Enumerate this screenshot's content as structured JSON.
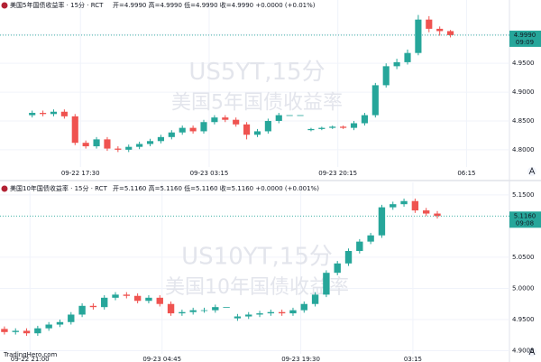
{
  "chart_data": [
    {
      "type": "candlestick",
      "header": "美国5年国债收益率 · 15分 · RCT",
      "ohlc_text": "开=4.9990 高=4.9990 低=4.9990 收=4.9990 +0.0000 (+0.01%)",
      "watermark": "US5YT,15分",
      "watermark_sub": "美国5年国债收益率",
      "up_color": "#26a69a",
      "down_color": "#ef5350",
      "open": [
        4.86,
        4.864,
        4.862,
        4.866,
        4.858,
        4.812,
        4.806,
        4.818,
        4.802,
        4.8,
        4.805,
        4.81,
        4.815,
        4.822,
        4.83,
        4.838,
        4.832,
        4.848,
        4.856,
        4.852,
        4.844,
        4.826,
        4.832,
        4.85,
        4.86,
        4.86,
        4.834,
        4.836,
        4.838,
        4.84,
        4.838,
        4.846,
        4.86,
        4.912,
        4.945,
        4.952,
        4.968,
        5.026,
        5.01,
        5.006
      ],
      "high": [
        4.868,
        4.868,
        4.87,
        4.87,
        4.862,
        4.816,
        4.822,
        4.822,
        4.806,
        4.809,
        4.814,
        4.819,
        4.826,
        4.834,
        4.842,
        4.842,
        4.852,
        4.86,
        4.86,
        4.856,
        4.848,
        4.836,
        4.854,
        4.864,
        4.86,
        4.86,
        4.838,
        4.84,
        4.842,
        4.842,
        4.85,
        4.864,
        4.916,
        4.95,
        4.958,
        4.974,
        5.034,
        5.032,
        5.014,
        5.008
      ],
      "low": [
        4.856,
        4.858,
        4.858,
        4.854,
        4.808,
        4.802,
        4.802,
        4.798,
        4.796,
        4.796,
        4.801,
        4.806,
        4.811,
        4.818,
        4.826,
        4.828,
        4.828,
        4.844,
        4.848,
        4.84,
        4.818,
        4.822,
        4.828,
        4.846,
        4.86,
        4.86,
        4.832,
        4.834,
        4.836,
        4.836,
        4.834,
        4.842,
        4.856,
        4.908,
        4.94,
        4.948,
        4.964,
        5.004,
        4.998,
        4.995
      ],
      "close": [
        4.864,
        4.862,
        4.866,
        4.858,
        4.812,
        4.806,
        4.818,
        4.802,
        4.8,
        4.805,
        4.81,
        4.815,
        4.822,
        4.83,
        4.838,
        4.832,
        4.848,
        4.856,
        4.852,
        4.844,
        4.826,
        4.832,
        4.85,
        4.86,
        4.86,
        4.86,
        4.836,
        4.838,
        4.84,
        4.838,
        4.846,
        4.86,
        4.912,
        4.945,
        4.952,
        4.968,
        5.026,
        5.01,
        5.006,
        4.999
      ],
      "xlim": [
        -3,
        44.5
      ],
      "ylim": [
        4.77,
        5.06
      ],
      "xticks": [
        {
          "value": 4.5,
          "label": "09-22 17:30"
        },
        {
          "value": 16.5,
          "label": "09-23 03:15"
        },
        {
          "value": 28.5,
          "label": "09-23 20:15"
        },
        {
          "value": 40.5,
          "label": "06:15"
        }
      ],
      "yticks": [
        {
          "value": 4.8,
          "label": "4.8000"
        },
        {
          "value": 4.85,
          "label": "4.8500"
        },
        {
          "value": 4.9,
          "label": "4.9000"
        },
        {
          "value": 4.95,
          "label": "4.9500"
        },
        {
          "value": 5.0,
          "label": "5.0000"
        }
      ],
      "last_price": {
        "value": 4.999,
        "label": "4.9990"
      },
      "countdown": "09:09"
    },
    {
      "type": "candlestick",
      "header": "美国10年国债收益率 · 15分 · RCT",
      "ohlc_text": "开=5.1160 高=5.1160 低=5.1160 收=5.1160 +0.0000 (+0.001%)",
      "watermark": "US10YT,15分",
      "watermark_sub": "美国10年国债收益率",
      "logo": "TradingHero.com",
      "up_color": "#26a69a",
      "down_color": "#ef5350",
      "open": [
        4.935,
        4.93,
        4.932,
        4.928,
        4.936,
        4.942,
        4.946,
        4.958,
        4.972,
        4.97,
        4.985,
        4.99,
        4.988,
        4.98,
        4.985,
        4.975,
        4.96,
        4.962,
        4.965,
        4.965,
        4.97,
        4.952,
        4.955,
        4.958,
        4.96,
        4.962,
        4.96,
        4.965,
        4.975,
        4.99,
        5.025,
        5.04,
        5.06,
        5.075,
        5.085,
        5.13,
        5.135,
        5.14,
        5.125,
        5.12
      ],
      "high": [
        4.939,
        4.936,
        4.936,
        4.94,
        4.946,
        4.95,
        4.962,
        4.976,
        4.976,
        4.989,
        4.994,
        4.994,
        4.992,
        4.989,
        4.989,
        4.979,
        4.966,
        4.969,
        4.969,
        4.974,
        4.97,
        4.959,
        4.962,
        4.964,
        4.966,
        4.966,
        4.969,
        4.979,
        4.994,
        5.029,
        5.044,
        5.064,
        5.079,
        5.089,
        5.134,
        5.139,
        5.144,
        5.144,
        5.129,
        5.124
      ],
      "low": [
        4.926,
        4.926,
        4.924,
        4.924,
        4.932,
        4.938,
        4.942,
        4.954,
        4.966,
        4.966,
        4.981,
        4.984,
        4.976,
        4.976,
        4.971,
        4.956,
        4.956,
        4.958,
        4.961,
        4.961,
        4.97,
        4.948,
        4.951,
        4.954,
        4.956,
        4.956,
        4.956,
        4.961,
        4.971,
        4.986,
        5.021,
        5.036,
        5.056,
        5.071,
        5.081,
        5.126,
        5.131,
        5.121,
        5.116,
        5.112
      ],
      "close": [
        4.93,
        4.932,
        4.928,
        4.936,
        4.942,
        4.946,
        4.958,
        4.972,
        4.97,
        4.985,
        4.99,
        4.988,
        4.98,
        4.985,
        4.975,
        4.96,
        4.962,
        4.965,
        4.965,
        4.97,
        4.97,
        4.955,
        4.958,
        4.96,
        4.962,
        4.96,
        4.965,
        4.975,
        4.99,
        5.025,
        5.04,
        5.06,
        5.075,
        5.085,
        5.13,
        5.135,
        5.14,
        5.125,
        5.12,
        5.116
      ],
      "xlim": [
        -0.4,
        45.5
      ],
      "ylim": [
        4.895,
        5.17
      ],
      "xticks": [
        {
          "value": 2.3,
          "label": "09-22 21:00"
        },
        {
          "value": 14.2,
          "label": "09-23 04:45"
        },
        {
          "value": 26.7,
          "label": "09-23 19:30"
        },
        {
          "value": 36.8,
          "label": "03:15"
        }
      ],
      "yticks": [
        {
          "value": 4.9,
          "label": "4.9000"
        },
        {
          "value": 4.95,
          "label": "4.9500"
        },
        {
          "value": 5.0,
          "label": "5.0000"
        },
        {
          "value": 5.05,
          "label": "5.0500"
        },
        {
          "value": 5.15,
          "label": "5.1500"
        }
      ],
      "last_price": {
        "value": 5.116,
        "label": "5.1160"
      },
      "countdown": "09:08"
    }
  ]
}
